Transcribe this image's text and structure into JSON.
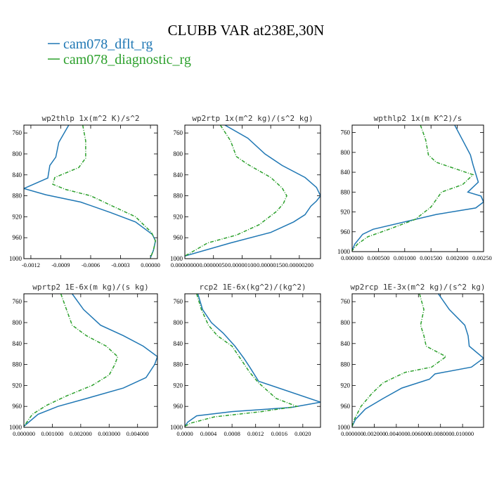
{
  "figure": {
    "title": "CLUBB VAR at238E,30N",
    "legend": [
      {
        "label": "cam078_dflt_rg",
        "color": "#1f77b4",
        "dash": "solid"
      },
      {
        "label": "cam078_diagnostic_rg",
        "color": "#2ca02c",
        "dash": "dashdot"
      }
    ]
  },
  "chart_data": [
    {
      "type": "line",
      "title": "wp2thlp  1x(m^2 K)/s^2",
      "xlim": [
        -0.00127,
        7e-05
      ],
      "ylim": [
        1000,
        745
      ],
      "xticks": [
        -0.0012,
        -0.0009,
        -0.0006,
        -0.0003,
        0.0
      ],
      "xtick_labels": [
        "-0.0012",
        "-0.0009",
        "-0.0006",
        "-0.0003",
        "0.00000"
      ],
      "yticks": [
        760,
        800,
        840,
        880,
        920,
        960,
        1000
      ],
      "ytick_labels": [
        "760",
        "800",
        "840",
        "880",
        "920",
        "960",
        "1000"
      ],
      "series": [
        {
          "name": "cam078_dflt_rg",
          "x": [
            -0.00082,
            -0.00092,
            -0.00095,
            -0.00101,
            -0.00103,
            -0.00127,
            -0.00105,
            -0.0007,
            -0.0004,
            -0.00015,
            2e-05,
            5e-05,
            3e-05,
            0.0
          ],
          "y": [
            745,
            778,
            806,
            822,
            846,
            866,
            878,
            892,
            912,
            930,
            954,
            966,
            984,
            998
          ]
        },
        {
          "name": "cam078_diagnostic_rg",
          "x": [
            -0.00068,
            -0.00065,
            -0.00065,
            -0.00072,
            -0.00096,
            -0.00098,
            -0.00085,
            -0.0006,
            -0.0004,
            -0.00015,
            1e-05,
            5e-05,
            3e-05,
            0.0
          ],
          "y": [
            745,
            775,
            808,
            826,
            845,
            858,
            868,
            880,
            898,
            920,
            950,
            966,
            984,
            998
          ]
        }
      ]
    },
    {
      "type": "line",
      "title": "wp2rtp  1x(m^2 kg)/(s^2 kg)",
      "xlim": [
        0.0,
        2.37e-06
      ],
      "ylim": [
        1000,
        745
      ],
      "xticks": [
        0.0,
        5e-07,
        1e-06,
        1.5e-06,
        2e-06
      ],
      "xtick_labels": [
        "0.00000000",
        "0.00000050",
        "0.00000100",
        "0.00000150",
        "0.00000200"
      ],
      "yticks": [
        760,
        800,
        840,
        880,
        920,
        960,
        1000
      ],
      "ytick_labels": [
        "760",
        "800",
        "840",
        "880",
        "920",
        "960",
        "1000"
      ],
      "series": [
        {
          "name": "cam078_dflt_rg",
          "x": [
            7e-07,
            1.1e-06,
            1.4e-06,
            1.7e-06,
            2.1e-06,
            2.3e-06,
            2.37e-06,
            2.3e-06,
            2.2e-06,
            2.1e-06,
            1.9e-06,
            1.5e-06,
            8e-07,
            0.0
          ],
          "y": [
            745,
            770,
            800,
            822,
            845,
            864,
            880,
            890,
            900,
            916,
            930,
            950,
            970,
            995
          ]
        },
        {
          "name": "cam078_diagnostic_rg",
          "x": [
            6.2e-07,
            8e-07,
            9e-07,
            1.1e-06,
            1.5e-06,
            1.7e-06,
            1.78e-06,
            1.72e-06,
            1.6e-06,
            1.3e-06,
            9e-07,
            4e-07,
            0.0
          ],
          "y": [
            745,
            775,
            805,
            820,
            845,
            865,
            880,
            895,
            910,
            935,
            955,
            970,
            995
          ]
        }
      ]
    },
    {
      "type": "line",
      "title": "wpthlp2  1x(m K^2)/s",
      "xlim": [
        0.0,
        0.0025
      ],
      "ylim": [
        1000,
        745
      ],
      "xticks": [
        0.0,
        0.0005,
        0.001,
        0.0015,
        0.002,
        0.0025
      ],
      "xtick_labels": [
        "0.000000",
        "0.000500",
        "0.001000",
        "0.001500",
        "0.002000",
        "0.002500"
      ],
      "yticks": [
        760,
        800,
        840,
        880,
        920,
        960,
        1000
      ],
      "ytick_labels": [
        "760",
        "800",
        "840",
        "880",
        "920",
        "960",
        "1000"
      ],
      "series": [
        {
          "name": "cam078_dflt_rg",
          "x": [
            0.00195,
            0.0021,
            0.00225,
            0.0023,
            0.0024,
            0.0022,
            0.00245,
            0.0025,
            0.00235,
            0.0016,
            0.0004,
            0.0002,
            5e-05,
            0.0
          ],
          "y": [
            745,
            775,
            805,
            825,
            860,
            880,
            888,
            900,
            912,
            925,
            955,
            965,
            985,
            998
          ]
        },
        {
          "name": "cam078_diagnostic_rg",
          "x": [
            0.0013,
            0.0014,
            0.00145,
            0.0016,
            0.0023,
            0.0021,
            0.0017,
            0.0015,
            0.0012,
            0.0007,
            0.0003,
            0.0001,
            0.0
          ],
          "y": [
            745,
            775,
            805,
            820,
            845,
            865,
            880,
            910,
            935,
            955,
            970,
            985,
            998
          ]
        }
      ]
    },
    {
      "type": "line",
      "title": "wprtp2  1E-6x(m kg)/(s kg)",
      "xlim": [
        0.0,
        0.0047
      ],
      "ylim": [
        1000,
        745
      ],
      "xticks": [
        0.0,
        0.001,
        0.002,
        0.003,
        0.004
      ],
      "xtick_labels": [
        "0.000000",
        "0.001000",
        "0.002000",
        "0.003000",
        "0.004000"
      ],
      "yticks": [
        760,
        800,
        840,
        880,
        920,
        960,
        1000
      ],
      "ytick_labels": [
        "760",
        "800",
        "840",
        "880",
        "920",
        "960",
        "1000"
      ],
      "series": [
        {
          "name": "cam078_dflt_rg",
          "x": [
            0.0017,
            0.0021,
            0.0027,
            0.0035,
            0.0042,
            0.0047,
            0.0046,
            0.0043,
            0.0035,
            0.0022,
            0.0012,
            0.0005,
            0.0
          ],
          "y": [
            745,
            775,
            805,
            825,
            845,
            865,
            880,
            905,
            925,
            945,
            960,
            975,
            998
          ]
        },
        {
          "name": "cam078_diagnostic_rg",
          "x": [
            0.0013,
            0.0015,
            0.0017,
            0.0022,
            0.0029,
            0.0033,
            0.0032,
            0.003,
            0.0024,
            0.0015,
            0.0008,
            0.0003,
            0.0
          ],
          "y": [
            745,
            775,
            805,
            825,
            845,
            865,
            880,
            900,
            920,
            940,
            958,
            975,
            998
          ]
        }
      ]
    },
    {
      "type": "line",
      "title": "rcp2  1E-6x(kg^2)/(kg^2)",
      "xlim": [
        0.0,
        0.0023
      ],
      "ylim": [
        1000,
        745
      ],
      "xticks": [
        0.0,
        0.0004,
        0.0008,
        0.0012,
        0.0016,
        0.002
      ],
      "xtick_labels": [
        "0.0000",
        "0.0004",
        "0.0008",
        "0.0012",
        "0.0016",
        "0.0020"
      ],
      "yticks": [
        760,
        800,
        840,
        880,
        920,
        960,
        1000
      ],
      "ytick_labels": [
        "760",
        "800",
        "840",
        "880",
        "920",
        "960",
        "1000"
      ],
      "series": [
        {
          "name": "cam078_dflt_rg",
          "x": [
            0.00022,
            0.0003,
            0.00045,
            0.00065,
            0.00085,
            0.001,
            0.0011,
            0.00125,
            0.0023,
            0.0018,
            0.0008,
            0.0002,
            5e-05,
            0.0
          ],
          "y": [
            745,
            775,
            800,
            820,
            845,
            868,
            885,
            912,
            952,
            962,
            970,
            978,
            990,
            998
          ]
        },
        {
          "name": "cam078_diagnostic_rg",
          "x": [
            0.0002,
            0.00028,
            0.0004,
            0.00055,
            0.0008,
            0.00095,
            0.0011,
            0.00125,
            0.00155,
            0.0019,
            0.0013,
            0.0005,
            0.0001,
            0.0
          ],
          "y": [
            745,
            775,
            805,
            825,
            845,
            870,
            895,
            915,
            945,
            960,
            970,
            980,
            992,
            998
          ]
        }
      ]
    },
    {
      "type": "line",
      "title": "wp2rcp  1E-3x(m^2 kg)/(s^2 kg)",
      "xlim": [
        0.0,
        0.0119
      ],
      "ylim": [
        1000,
        745
      ],
      "xticks": [
        0.0,
        0.002,
        0.004,
        0.006,
        0.008,
        0.01
      ],
      "xtick_labels": [
        "0.000000",
        "0.002000",
        "0.004000",
        "0.006000",
        "0.008000",
        "0.010000"
      ],
      "yticks": [
        760,
        800,
        840,
        880,
        920,
        960,
        1000
      ],
      "ytick_labels": [
        "760",
        "800",
        "840",
        "880",
        "920",
        "960",
        "1000"
      ],
      "series": [
        {
          "name": "cam078_dflt_rg",
          "x": [
            0.0078,
            0.0088,
            0.0102,
            0.0105,
            0.0106,
            0.0119,
            0.0108,
            0.0075,
            0.007,
            0.0045,
            0.0028,
            0.0012,
            0.0003,
            0.0
          ],
          "y": [
            745,
            775,
            805,
            825,
            845,
            868,
            885,
            898,
            908,
            925,
            945,
            965,
            985,
            998
          ]
        },
        {
          "name": "cam078_diagnostic_rg",
          "x": [
            0.0061,
            0.0065,
            0.0062,
            0.0065,
            0.0067,
            0.0085,
            0.0072,
            0.0048,
            0.0028,
            0.0018,
            0.0008,
            0.0002,
            0.0
          ],
          "y": [
            745,
            775,
            805,
            825,
            845,
            865,
            885,
            895,
            915,
            935,
            960,
            985,
            998
          ]
        }
      ]
    }
  ]
}
